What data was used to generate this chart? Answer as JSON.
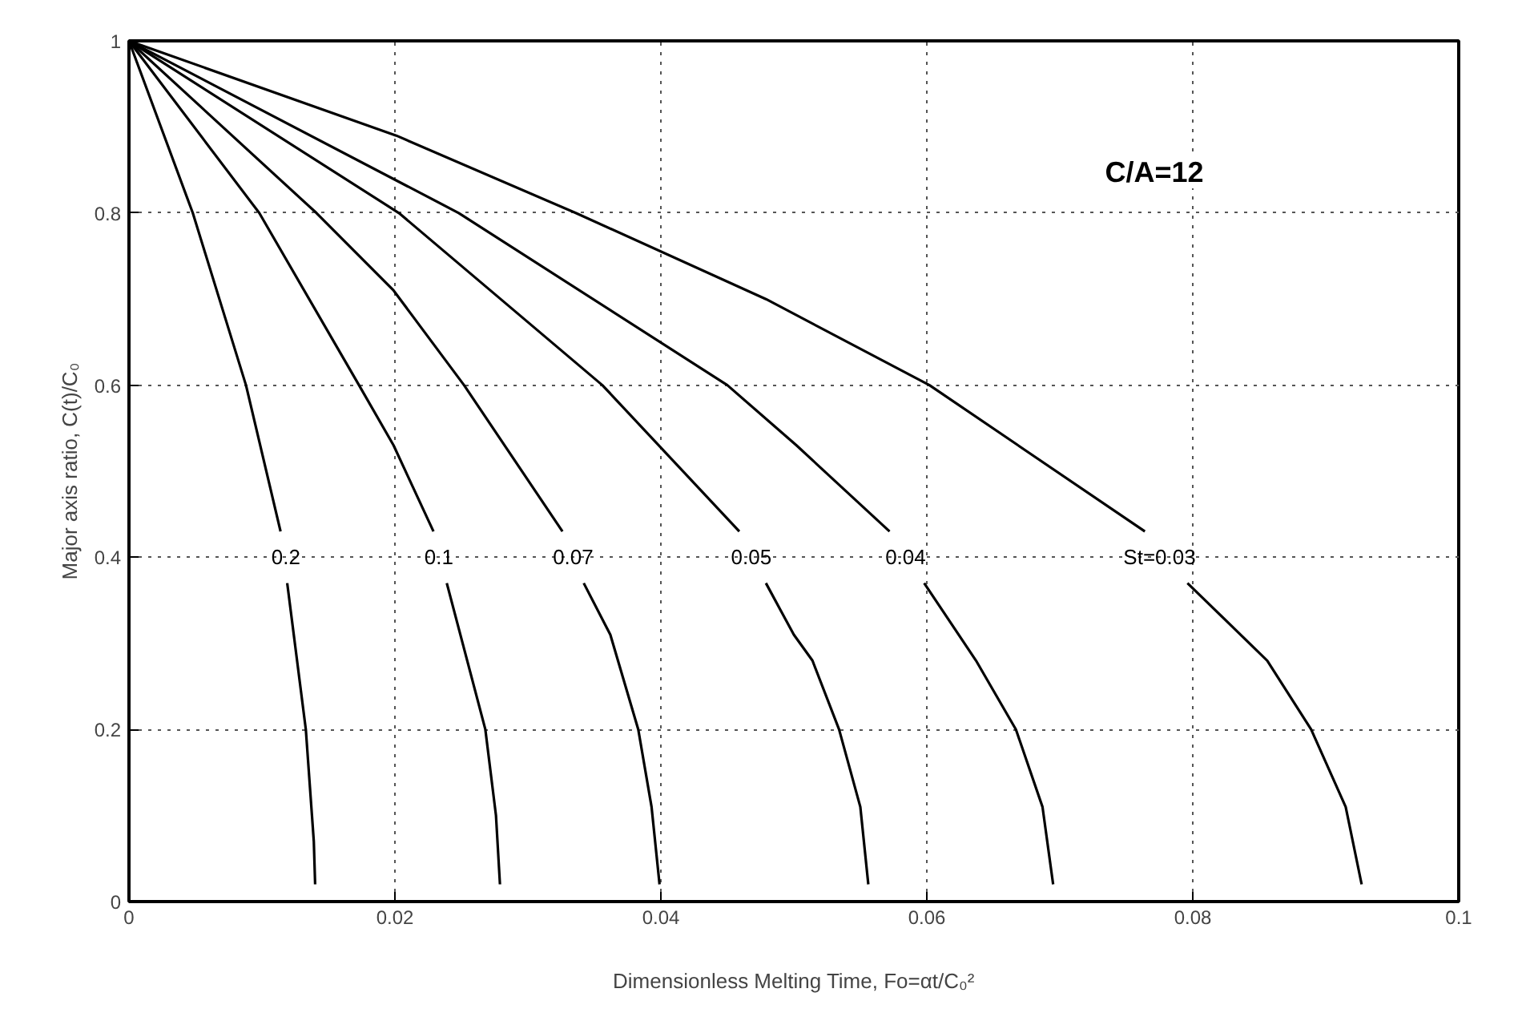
{
  "chart_data": {
    "type": "line",
    "xlabel": "Dimensionless Melting Time, Fo=αt/C₀²",
    "ylabel": "Major axis ratio, C(t)/C₀",
    "xlim": [
      0,
      0.1
    ],
    "ylim": [
      0,
      1
    ],
    "xticks": [
      0,
      0.02,
      0.04,
      0.06,
      0.08,
      0.1
    ],
    "yticks": [
      0,
      0.2,
      0.4,
      0.6,
      0.8,
      1
    ],
    "grid": true,
    "line_style": "dotted",
    "marker": "none",
    "series": [
      {
        "name": "0.2",
        "color": "#000000",
        "line_style": "solid",
        "x": [
          0,
          0.0048,
          0.0088,
          0.0114,
          0.0118,
          0.0119,
          0.0133,
          0.0139,
          0.014
        ],
        "values": [
          1,
          0.8,
          0.6,
          0.43,
          null,
          0.37,
          0.2,
          0.07,
          0.02
        ]
      },
      {
        "name": "0.1",
        "color": "#000000",
        "line_style": "solid",
        "x": [
          0,
          0.0098,
          0.0173,
          0.0199,
          0.0229,
          0.0233,
          0.0239,
          0.0268,
          0.0276,
          0.0279
        ],
        "values": [
          1,
          0.8,
          0.6,
          0.53,
          0.43,
          null,
          0.37,
          0.2,
          0.1,
          0.02
        ]
      },
      {
        "name": "0.07",
        "color": "#000000",
        "line_style": "solid",
        "x": [
          0,
          0.0141,
          0.0199,
          0.0252,
          0.0326,
          0.0334,
          0.0342,
          0.0362,
          0.0383,
          0.0393,
          0.0399
        ],
        "values": [
          1,
          0.8,
          0.71,
          0.6,
          0.43,
          null,
          0.37,
          0.31,
          0.2,
          0.11,
          0.02
        ]
      },
      {
        "name": "0.05",
        "color": "#000000",
        "line_style": "solid",
        "x": [
          0,
          0.0203,
          0.0356,
          0.0459,
          0.0468,
          0.0479,
          0.05,
          0.0514,
          0.0534,
          0.055,
          0.0556
        ],
        "values": [
          1,
          0.8,
          0.6,
          0.43,
          null,
          0.37,
          0.31,
          0.28,
          0.2,
          0.11,
          0.02
        ]
      },
      {
        "name": "0.04",
        "color": "#000000",
        "line_style": "solid",
        "x": [
          0,
          0.0248,
          0.045,
          0.0502,
          0.0572,
          0.0584,
          0.0598,
          0.0637,
          0.0667,
          0.0687,
          0.0695
        ],
        "values": [
          1,
          0.8,
          0.6,
          0.53,
          0.43,
          null,
          0.37,
          0.28,
          0.2,
          0.11,
          0.02
        ]
      },
      {
        "name": "St=0.03",
        "color": "#000000",
        "line_style": "solid",
        "x": [
          0,
          0.0201,
          0.0336,
          0.0479,
          0.0602,
          0.0764,
          0.0775,
          0.0796,
          0.0856,
          0.0889,
          0.0915,
          0.0927
        ],
        "values": [
          1,
          0.89,
          0.8,
          0.7,
          0.6,
          0.43,
          null,
          0.37,
          0.28,
          0.2,
          0.11,
          0.02
        ]
      }
    ],
    "annotations": [
      "C/A=12"
    ]
  }
}
